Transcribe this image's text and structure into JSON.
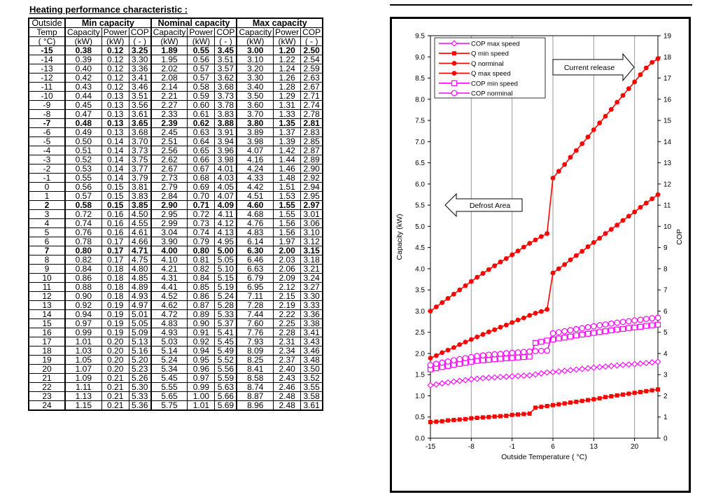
{
  "page_title": "Heating performance characteristic :",
  "table": {
    "group_headers": [
      "Outside",
      "Min capacity",
      "Nominal capacity",
      "Max capacity"
    ],
    "col_headers": [
      "Temp",
      "Capacity",
      "Power",
      "COP",
      "Capacity",
      "Power",
      "COP",
      "Capacity",
      "Power",
      "COP"
    ],
    "units": [
      "( °C)",
      "(kW)",
      "(kW)",
      "( - )",
      "(kW)",
      "(kW)",
      "( - )",
      "(kW)",
      "(kW)",
      "( - )"
    ],
    "bold_rows": [
      "-15",
      "-7",
      "2",
      "7"
    ],
    "rows": [
      [
        "-15",
        "0.38",
        "0.12",
        "3.25",
        "1.89",
        "0.55",
        "3.45",
        "3.00",
        "1.20",
        "2.50"
      ],
      [
        "-14",
        "0.39",
        "0.12",
        "3.30",
        "1.95",
        "0.56",
        "3.51",
        "3.10",
        "1.22",
        "2.54"
      ],
      [
        "-13",
        "0.40",
        "0.12",
        "3.36",
        "2.02",
        "0.57",
        "3.57",
        "3.20",
        "1.24",
        "2.59"
      ],
      [
        "-12",
        "0.42",
        "0.12",
        "3.41",
        "2.08",
        "0.57",
        "3.62",
        "3.30",
        "1.26",
        "2.63"
      ],
      [
        "-11",
        "0.43",
        "0.12",
        "3.46",
        "2.14",
        "0.58",
        "3.68",
        "3.40",
        "1.28",
        "2.67"
      ],
      [
        "-10",
        "0.44",
        "0.13",
        "3.51",
        "2.21",
        "0.59",
        "3.73",
        "3.50",
        "1.29",
        "2.71"
      ],
      [
        "-9",
        "0.45",
        "0.13",
        "3.56",
        "2.27",
        "0.60",
        "3.78",
        "3.60",
        "1.31",
        "2.74"
      ],
      [
        "-8",
        "0.47",
        "0.13",
        "3.61",
        "2.33",
        "0.61",
        "3.83",
        "3.70",
        "1.33",
        "2.78"
      ],
      [
        "-7",
        "0.48",
        "0.13",
        "3.65",
        "2.39",
        "0.62",
        "3.88",
        "3.80",
        "1.35",
        "2.81"
      ],
      [
        "-6",
        "0.49",
        "0.13",
        "3.68",
        "2.45",
        "0.63",
        "3.91",
        "3.89",
        "1.37",
        "2.83"
      ],
      [
        "-5",
        "0.50",
        "0.14",
        "3.70",
        "2.51",
        "0.64",
        "3.94",
        "3.98",
        "1.39",
        "2.85"
      ],
      [
        "-4",
        "0.51",
        "0.14",
        "3.73",
        "2.56",
        "0.65",
        "3.96",
        "4.07",
        "1.42",
        "2.87"
      ],
      [
        "-3",
        "0.52",
        "0.14",
        "3.75",
        "2.62",
        "0.66",
        "3.98",
        "4.16",
        "1.44",
        "2.89"
      ],
      [
        "-2",
        "0.53",
        "0.14",
        "3.77",
        "2.67",
        "0.67",
        "4.01",
        "4.24",
        "1.46",
        "2.90"
      ],
      [
        "-1",
        "0.55",
        "0.14",
        "3.79",
        "2.73",
        "0.68",
        "4.03",
        "4.33",
        "1.48",
        "2.92"
      ],
      [
        "0",
        "0.56",
        "0.15",
        "3.81",
        "2.79",
        "0.69",
        "4.05",
        "4.42",
        "1.51",
        "2.94"
      ],
      [
        "1",
        "0.57",
        "0.15",
        "3.83",
        "2.84",
        "0.70",
        "4.07",
        "4.51",
        "1.53",
        "2.95"
      ],
      [
        "2",
        "0.58",
        "0.15",
        "3.85",
        "2.90",
        "0.71",
        "4.09",
        "4.60",
        "1.55",
        "2.97"
      ],
      [
        "3",
        "0.72",
        "0.16",
        "4.50",
        "2.95",
        "0.72",
        "4.11",
        "4.68",
        "1.55",
        "3.01"
      ],
      [
        "4",
        "0.74",
        "0.16",
        "4.55",
        "2.99",
        "0.73",
        "4.12",
        "4.76",
        "1.56",
        "3.06"
      ],
      [
        "5",
        "0.76",
        "0.16",
        "4.61",
        "3.04",
        "0.74",
        "4.13",
        "4.83",
        "1.56",
        "3.10"
      ],
      [
        "6",
        "0.78",
        "0.17",
        "4.66",
        "3.90",
        "0.79",
        "4.95",
        "6.14",
        "1.97",
        "3.12"
      ],
      [
        "7",
        "0.80",
        "0.17",
        "4.71",
        "4.00",
        "0.80",
        "5.00",
        "6.30",
        "2.00",
        "3.15"
      ],
      [
        "8",
        "0.82",
        "0.17",
        "4.75",
        "4.10",
        "0.81",
        "5.05",
        "6.46",
        "2.03",
        "3.18"
      ],
      [
        "9",
        "0.84",
        "0.18",
        "4.80",
        "4.21",
        "0.82",
        "5.10",
        "6.63",
        "2.06",
        "3.21"
      ],
      [
        "10",
        "0.86",
        "0.18",
        "4.85",
        "4.31",
        "0.84",
        "5.15",
        "6.79",
        "2.09",
        "3.24"
      ],
      [
        "11",
        "0.88",
        "0.18",
        "4.89",
        "4.41",
        "0.85",
        "5.19",
        "6.95",
        "2.12",
        "3.27"
      ],
      [
        "12",
        "0.90",
        "0.18",
        "4.93",
        "4.52",
        "0.86",
        "5.24",
        "7.11",
        "2.15",
        "3.30"
      ],
      [
        "13",
        "0.92",
        "0.19",
        "4.97",
        "4.62",
        "0.87",
        "5.28",
        "7.28",
        "2.19",
        "3.33"
      ],
      [
        "14",
        "0.94",
        "0.19",
        "5.01",
        "4.72",
        "0.89",
        "5.33",
        "7.44",
        "2.22",
        "3.36"
      ],
      [
        "15",
        "0.97",
        "0.19",
        "5.05",
        "4.83",
        "0.90",
        "5.37",
        "7.60",
        "2.25",
        "3.38"
      ],
      [
        "16",
        "0.99",
        "0.19",
        "5.09",
        "4.93",
        "0.91",
        "5.41",
        "7.76",
        "2.28",
        "3.41"
      ],
      [
        "17",
        "1.01",
        "0.20",
        "5.13",
        "5.03",
        "0.92",
        "5.45",
        "7.93",
        "2.31",
        "3.43"
      ],
      [
        "18",
        "1.03",
        "0.20",
        "5.16",
        "5.14",
        "0.94",
        "5.49",
        "8.09",
        "2.34",
        "3.46"
      ],
      [
        "19",
        "1.05",
        "0.20",
        "5.20",
        "5.24",
        "0.95",
        "5.52",
        "8.25",
        "2.37",
        "3.48"
      ],
      [
        "20",
        "1.07",
        "0.20",
        "5.23",
        "5.34",
        "0.96",
        "5.56",
        "8.41",
        "2.40",
        "3.50"
      ],
      [
        "21",
        "1.09",
        "0.21",
        "5.26",
        "5.45",
        "0.97",
        "5.59",
        "8.58",
        "2.43",
        "3.52"
      ],
      [
        "22",
        "1.11",
        "0.21",
        "5.30",
        "5.55",
        "0.99",
        "5.63",
        "8.74",
        "2.46",
        "3.55"
      ],
      [
        "23",
        "1.13",
        "0.21",
        "5.33",
        "5.65",
        "1.00",
        "5.66",
        "8.87",
        "2.48",
        "3.58"
      ],
      [
        "24",
        "1.15",
        "0.21",
        "5.36",
        "5.75",
        "1.01",
        "5.69",
        "8.96",
        "2.48",
        "3.61"
      ]
    ]
  },
  "chart_data": {
    "type": "line",
    "title": "",
    "xlabel": "Outside Temperature ( °C)",
    "ylabel": "Capacity (kW)",
    "y2label": "COP",
    "xlim": [
      -15,
      24
    ],
    "ylim": [
      0,
      9.5
    ],
    "y2lim": [
      0,
      19
    ],
    "xticks": [
      "-15",
      "-8",
      "-1",
      "6",
      "13",
      "20"
    ],
    "yticks": [
      "0.0",
      "0.5",
      "1.0",
      "1.5",
      "2.0",
      "2.5",
      "3.0",
      "3.5",
      "4.0",
      "4.5",
      "5.0",
      "5.5",
      "6.0",
      "6.5",
      "7.0",
      "7.5",
      "8.0",
      "8.5",
      "9.0",
      "9.5"
    ],
    "y2ticks": [
      "0",
      "1",
      "2",
      "3",
      "4",
      "5",
      "6",
      "7",
      "8",
      "9",
      "10",
      "11",
      "12",
      "13",
      "14",
      "15",
      "16",
      "17",
      "18",
      "19"
    ],
    "grid": true,
    "legend_position": "top-left",
    "legend": [
      "COP max speed",
      "Q min speed",
      "Q norminal",
      "Q max speed",
      "COP min speed",
      "COP norminal"
    ],
    "annotations": [
      "Current release",
      "Defrost Area"
    ],
    "color_red": "#ff0000",
    "color_magenta": "#ff00ff"
  }
}
